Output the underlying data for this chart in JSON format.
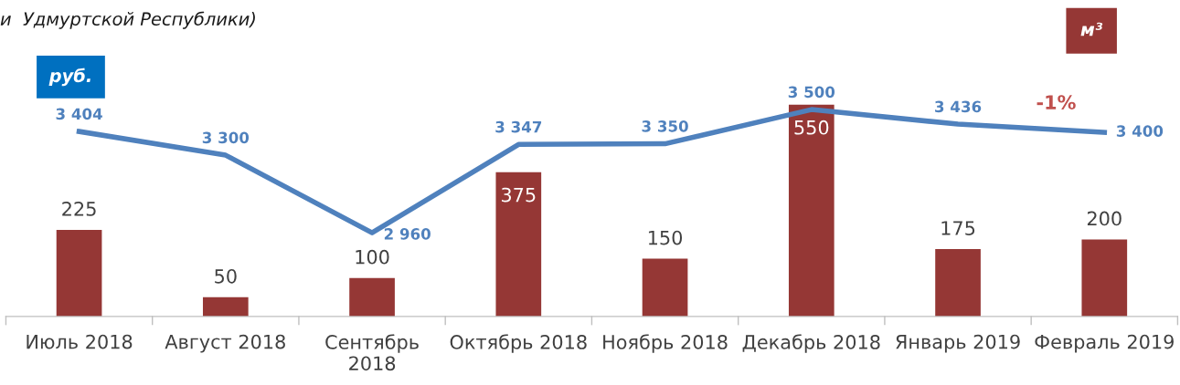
{
  "chart_data": {
    "type": "bar",
    "title": "и  Удмуртской Республики)",
    "categories": [
      "Июль 2018",
      "Август 2018",
      "Сентябрь 2018",
      "Октябрь 2018",
      "Ноябрь 2018",
      "Декабрь 2018",
      "Январь 2019",
      "Февраль 2019"
    ],
    "series": [
      {
        "color": "#953735",
        "values": [
          225,
          50,
          100,
          375,
          150,
          550,
          175,
          200
        ]
      },
      {
        "type": "line",
        "axis": "y2",
        "color": "#4f81bd",
        "values": [
          3404,
          3300,
          2960,
          3347,
          3350,
          3500,
          3436,
          3400
        ]
      }
    ],
    "ylabel": "м³",
    "y2label": "руб.",
    "annotations": [
      "-1%"
    ],
    "data_labels": true,
    "tick_labels": "x",
    "grid": false,
    "marker": "none",
    "line_style": "solid"
  }
}
